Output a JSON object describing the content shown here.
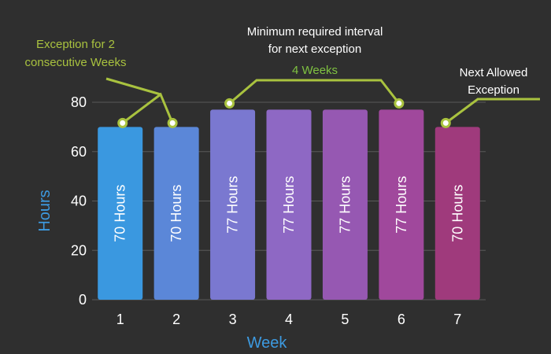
{
  "chart_data": {
    "type": "bar",
    "categories": [
      "1",
      "2",
      "3",
      "4",
      "5",
      "6",
      "7"
    ],
    "values": [
      70,
      70,
      77,
      77,
      77,
      77,
      70
    ],
    "bar_labels": [
      "70 Hours",
      "70 Hours",
      "77 Hours",
      "77 Hours",
      "77 Hours",
      "77 Hours",
      "70 Hours"
    ],
    "bar_colors": [
      "#3a98e0",
      "#5b87d8",
      "#7a78d0",
      "#8e68c4",
      "#9658b2",
      "#a0489c",
      "#9f3a7c"
    ],
    "xlabel": "Week",
    "ylabel": "Hours",
    "yticks": [
      0,
      20,
      40,
      60,
      80
    ],
    "ylim": [
      0,
      80
    ],
    "grid": true,
    "annotations": {
      "exception": {
        "lines": [
          "Exception for 2",
          "consecutive Weeks"
        ],
        "weeks": [
          1,
          2
        ]
      },
      "interval": {
        "lines": [
          "Minimum required interval",
          "for next exception"
        ],
        "weeks_text": "4 Weeks",
        "from_week": 3,
        "to_week": 6
      },
      "next": {
        "lines": [
          "Next Allowed",
          "Exception"
        ],
        "week": 7
      }
    },
    "colors": {
      "background": "#2f2f2f",
      "grid": "#5a5a5a",
      "axis_title": "#3d9ae0",
      "annotation_line": "#a9c23f",
      "annotation_text_green": "#a9c23f",
      "weeks_text": "#7fc241",
      "text": "#ffffff"
    }
  }
}
